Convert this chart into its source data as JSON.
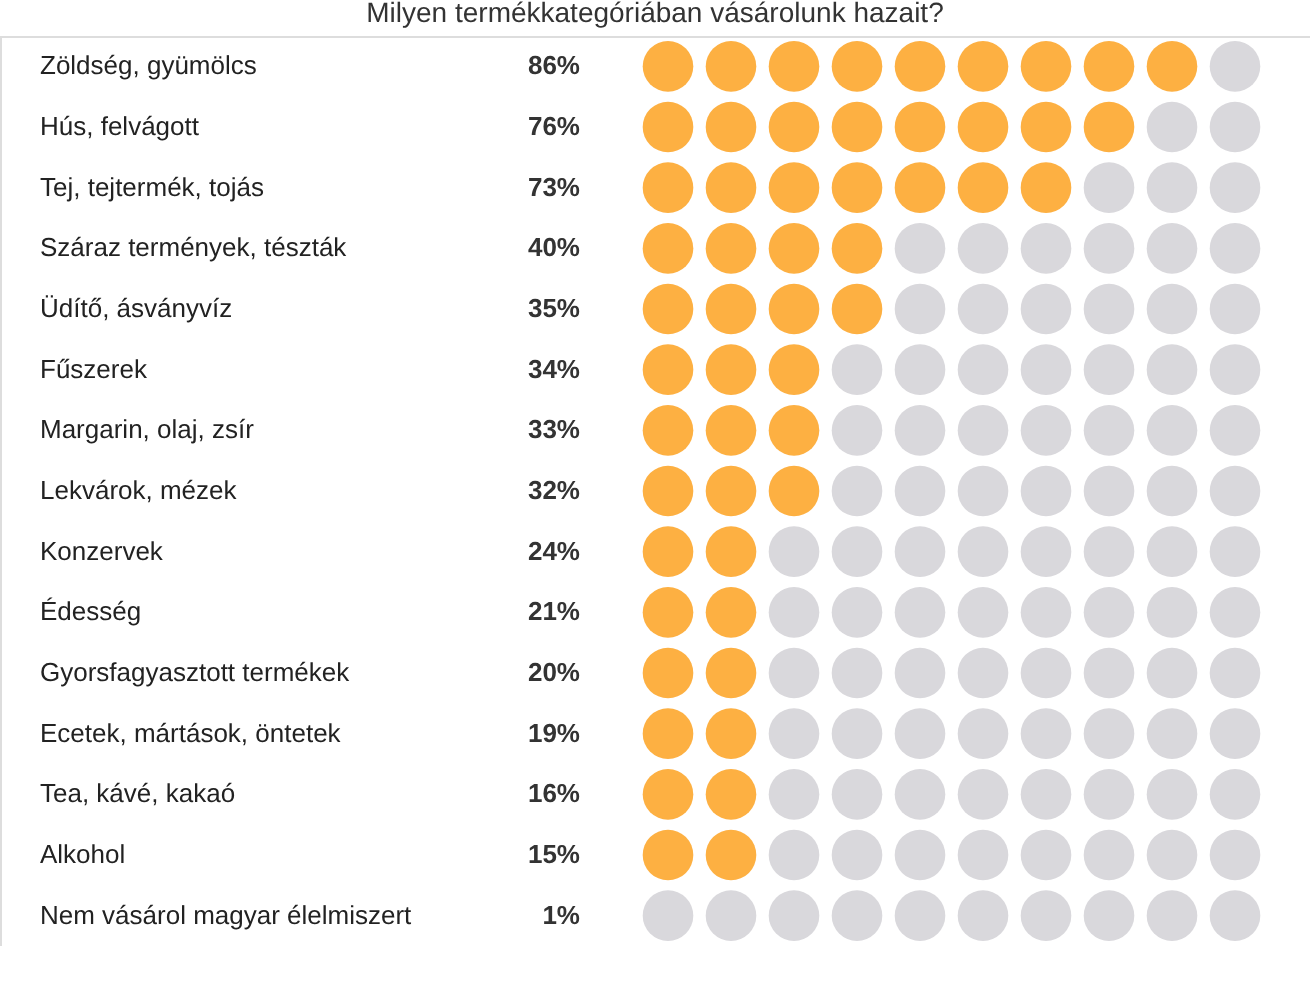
{
  "chart_data": {
    "type": "other",
    "title": "Milyen termékkategóriában vásárolunk hazait?",
    "categories": [
      "Zöldség, gyümölcs",
      "Hús, felvágott",
      "Tej, tejtermék, tojás",
      "Száraz termények, tészták",
      "Üdítő, ásványvíz",
      "Fűszerek",
      "Margarin, olaj, zsír",
      "Lekvárok, mézek",
      "Konzervek",
      "Édesség",
      "Gyorsfagyasztott termékek",
      "Ecetek, mártások, öntetek",
      "Tea, kávé, kakaó",
      "Alkohol",
      "Nem vásárol magyar élelmiszert"
    ],
    "values": [
      86,
      76,
      73,
      40,
      35,
      34,
      33,
      32,
      24,
      21,
      20,
      19,
      16,
      15,
      1
    ],
    "value_labels": [
      "86%",
      "76%",
      "73%",
      "40%",
      "35%",
      "34%",
      "33%",
      "32%",
      "24%",
      "21%",
      "20%",
      "19%",
      "16%",
      "15%",
      "1%"
    ],
    "color": "#fdb042"
  }
}
